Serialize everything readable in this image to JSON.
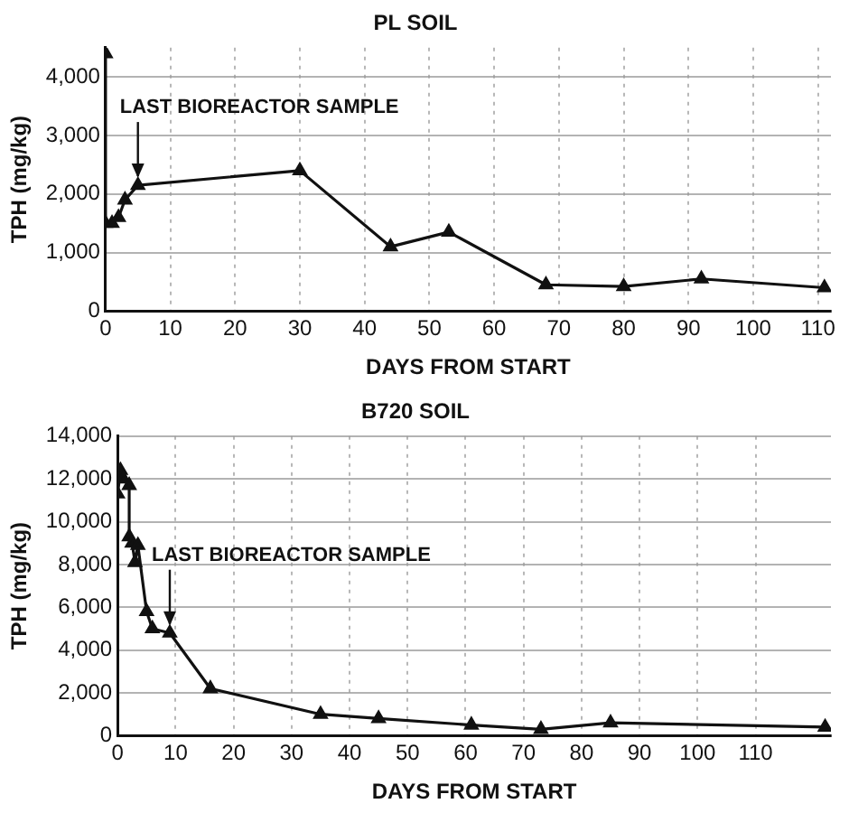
{
  "chart_data": [
    {
      "type": "line",
      "title": "PL SOIL",
      "xlabel": "DAYS FROM START",
      "ylabel": "TPH (mg/kg)",
      "series": [
        {
          "color": "#111111",
          "x": [
            0,
            0,
            1,
            2,
            3,
            5,
            30,
            44,
            53,
            68,
            80,
            92,
            111
          ],
          "values": [
            4400,
            1500,
            1500,
            1600,
            1900,
            2150,
            2400,
            1100,
            1350,
            450,
            420,
            550,
            400
          ]
        }
      ],
      "xlim": [
        0,
        112
      ],
      "xticks": [
        0,
        10,
        20,
        30,
        40,
        50,
        60,
        70,
        80,
        90,
        100,
        110
      ],
      "ylim": [
        0,
        4500
      ],
      "yticks": [
        {
          "value": 0,
          "label": "0"
        },
        {
          "value": 1000,
          "label": "1,000"
        },
        {
          "value": 2000,
          "label": "2,000"
        },
        {
          "value": 3000,
          "label": "3,000"
        },
        {
          "value": 4000,
          "label": "4,000"
        }
      ],
      "annotations": [
        {
          "text": "LAST BIOREACTOR SAMPLE",
          "x": 5,
          "y": 2150
        }
      ],
      "grid": true,
      "legend": false,
      "marker": "triangle",
      "line_style": "solid"
    },
    {
      "type": "line",
      "title": "B720 SOIL",
      "xlabel": "DAYS FROM START",
      "ylabel": "TPH (mg/kg)",
      "series": [
        {
          "color": "#111111",
          "x": [
            0,
            0.5,
            1,
            2,
            2,
            2.5,
            3,
            3.5,
            5,
            6,
            9,
            16,
            35,
            45,
            61,
            73,
            85,
            122
          ],
          "values": [
            11300,
            12400,
            12000,
            11700,
            9300,
            9000,
            8100,
            8900,
            5800,
            5000,
            4800,
            2200,
            1000,
            800,
            500,
            300,
            600,
            400
          ]
        }
      ],
      "xlim": [
        0,
        123
      ],
      "xticks": [
        0,
        10,
        20,
        30,
        40,
        50,
        60,
        70,
        80,
        90,
        100,
        110
      ],
      "ylim": [
        0,
        14000
      ],
      "yticks": [
        {
          "value": 0,
          "label": "0"
        },
        {
          "value": 2000,
          "label": "2,000"
        },
        {
          "value": 4000,
          "label": "4,000"
        },
        {
          "value": 6000,
          "label": "6,000"
        },
        {
          "value": 8000,
          "label": "8,000"
        },
        {
          "value": 10000,
          "label": "10,000"
        },
        {
          "value": 12000,
          "label": "12,000"
        },
        {
          "value": 14000,
          "label": "14,000"
        }
      ],
      "annotations": [
        {
          "text": "LAST BIOREACTOR SAMPLE",
          "x": 9,
          "y": 4800
        }
      ],
      "grid": true,
      "legend": false,
      "marker": "triangle",
      "line_style": "solid"
    }
  ]
}
